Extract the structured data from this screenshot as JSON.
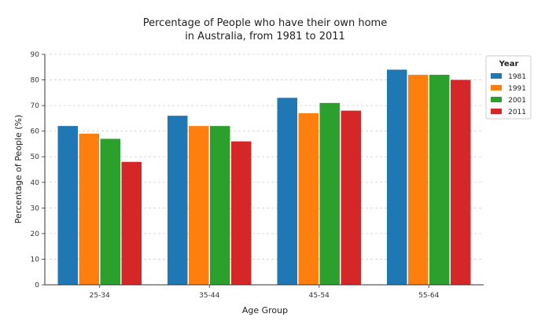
{
  "chart_data": {
    "type": "bar",
    "title_lines": [
      "Percentage of People who have their own home",
      "in Australia, from 1981 to 2011"
    ],
    "xlabel": "Age Group",
    "ylabel": "Percentage of People (%)",
    "categories": [
      "25-34",
      "35-44",
      "45-54",
      "55-64"
    ],
    "ylim": [
      0,
      90
    ],
    "yticks": [
      0,
      10,
      20,
      30,
      40,
      50,
      60,
      70,
      80,
      90
    ],
    "grid": "horizontal dashed",
    "legend": {
      "title": "Year",
      "placement": "top-right"
    },
    "series": [
      {
        "name": "1981",
        "color": "#1f77b4",
        "values": [
          62,
          66,
          73,
          84
        ]
      },
      {
        "name": "1991",
        "color": "#ff7f0e",
        "values": [
          59,
          62,
          67,
          82
        ]
      },
      {
        "name": "2001",
        "color": "#2ca02c",
        "values": [
          57,
          62,
          71,
          82
        ]
      },
      {
        "name": "2011",
        "color": "#d62728",
        "values": [
          48,
          56,
          68,
          80
        ]
      }
    ]
  }
}
